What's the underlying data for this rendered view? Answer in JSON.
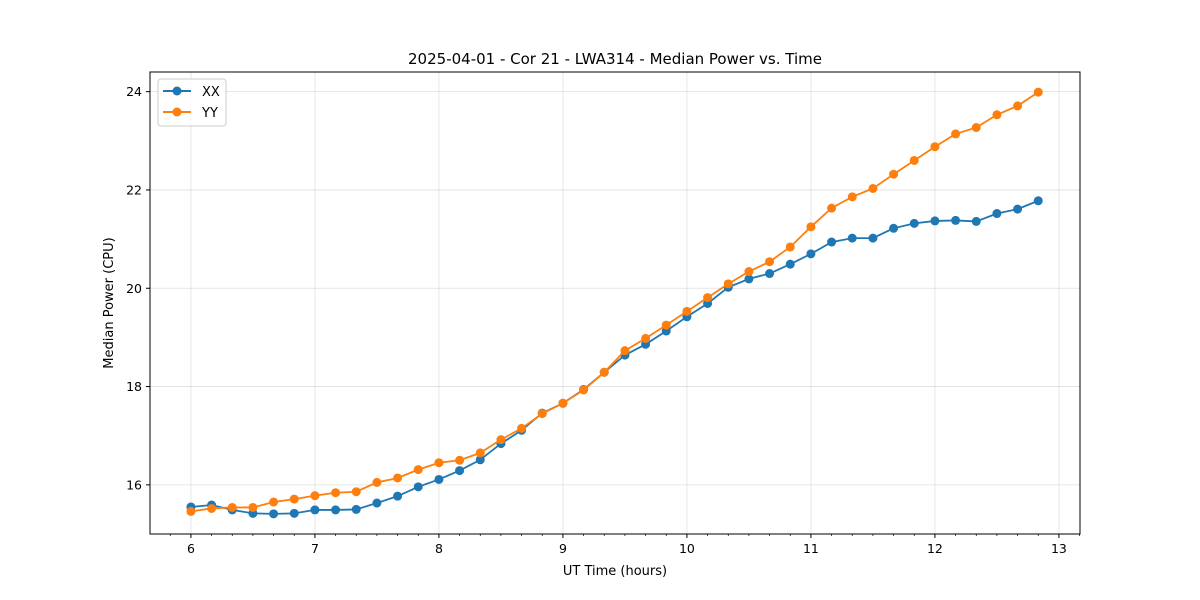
{
  "chart_data": {
    "type": "line",
    "title": "2025-04-01 - Cor 21 - LWA314 - Median Power vs. Time",
    "xlabel": "UT Time (hours)",
    "ylabel": "Median Power (CPU)",
    "xlim": [
      5.67,
      13.17
    ],
    "ylim": [
      15.0,
      24.4
    ],
    "xticks": [
      6,
      7,
      8,
      9,
      10,
      11,
      12,
      13
    ],
    "yticks": [
      16,
      18,
      20,
      22,
      24
    ],
    "grid": true,
    "legend_position": "top-left",
    "x": [
      6.0,
      6.1667,
      6.3333,
      6.5,
      6.6667,
      6.8333,
      7.0,
      7.1667,
      7.3333,
      7.5,
      7.6667,
      7.8333,
      8.0,
      8.1667,
      8.3333,
      8.5,
      8.6667,
      8.8333,
      9.0,
      9.1667,
      9.3333,
      9.5,
      9.6667,
      9.8333,
      10.0,
      10.1667,
      10.3333,
      10.5,
      10.6667,
      10.8333,
      11.0,
      11.1667,
      11.3333,
      11.5,
      11.6667,
      11.8333,
      12.0,
      12.1667,
      12.3333,
      12.5,
      12.6667,
      12.8333
    ],
    "series": [
      {
        "name": "XX",
        "color": "#1f77b4",
        "values": [
          15.55,
          15.59,
          15.49,
          15.42,
          15.41,
          15.42,
          15.49,
          15.49,
          15.5,
          15.63,
          15.77,
          15.96,
          16.11,
          16.29,
          16.51,
          16.84,
          17.11,
          17.46,
          17.66,
          17.94,
          18.29,
          18.64,
          18.86,
          19.13,
          19.42,
          19.69,
          20.02,
          20.19,
          20.3,
          20.49,
          20.7,
          20.94,
          21.02,
          21.02,
          21.22,
          21.32,
          21.37,
          21.38,
          21.36,
          21.52,
          21.61,
          21.78
        ]
      },
      {
        "name": "YY",
        "color": "#ff7f0e",
        "values": [
          15.46,
          15.52,
          15.54,
          15.54,
          15.65,
          15.71,
          15.78,
          15.84,
          15.86,
          16.05,
          16.14,
          16.31,
          16.45,
          16.5,
          16.65,
          16.92,
          17.15,
          17.45,
          17.66,
          17.93,
          18.29,
          18.73,
          18.98,
          19.25,
          19.53,
          19.81,
          20.09,
          20.34,
          20.54,
          20.84,
          21.25,
          21.63,
          21.86,
          22.03,
          22.32,
          22.6,
          22.88,
          23.14,
          23.27,
          23.53,
          23.71,
          23.99
        ]
      }
    ]
  }
}
